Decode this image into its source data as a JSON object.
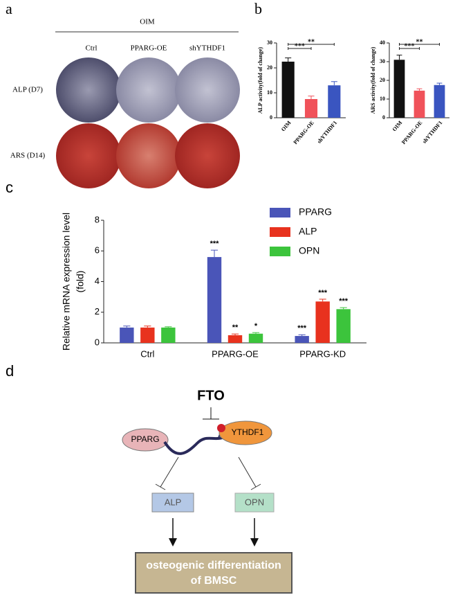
{
  "panel_a": {
    "label": "a",
    "group": "OIM",
    "columns": [
      "Ctrl",
      "PPARG-OE",
      "shYTHDF1"
    ],
    "rows": [
      "ALP (D7)",
      "ARS (D14)"
    ]
  },
  "panel_b": {
    "label": "b"
  },
  "panel_c": {
    "label": "c"
  },
  "chart_data": [
    {
      "type": "bar",
      "ylabel": "ALP activity(fold of change)",
      "categories": [
        "OIM",
        "PPARG-OE",
        "shYTHDF1"
      ],
      "values": [
        22.5,
        7.5,
        13
      ],
      "errors": [
        1.5,
        1.2,
        1.5
      ],
      "colors": [
        "#111111",
        "#f0525a",
        "#3a55c0"
      ],
      "significance": [
        null,
        "***",
        "**"
      ],
      "ylim": [
        0,
        30
      ],
      "yticks": [
        0,
        10,
        20,
        30
      ]
    },
    {
      "type": "bar",
      "ylabel": "ARS activity(fold of change)",
      "categories": [
        "OIM",
        "PPARG-OE",
        "shYTHDF1"
      ],
      "values": [
        31,
        14.5,
        17.5
      ],
      "errors": [
        2.5,
        1,
        1
      ],
      "colors": [
        "#111111",
        "#f0525a",
        "#3a55c0"
      ],
      "significance": [
        null,
        "***",
        "**"
      ],
      "ylim": [
        0,
        40
      ],
      "yticks": [
        0,
        10,
        20,
        30,
        40
      ]
    },
    {
      "type": "bar",
      "ylabel": [
        "Relative mRNA expression level",
        "(fold)"
      ],
      "categories": [
        "Ctrl",
        "PPARG-OE",
        "PPARG-KD"
      ],
      "series": [
        {
          "name": "PPARG",
          "color": "#4a55b8",
          "values": [
            1,
            5.6,
            0.45
          ],
          "errors": [
            0.1,
            0.45,
            0.08
          ],
          "significance": [
            null,
            "***",
            "***"
          ]
        },
        {
          "name": "ALP",
          "color": "#e8321e",
          "values": [
            1,
            0.5,
            2.7
          ],
          "errors": [
            0.1,
            0.08,
            0.15
          ],
          "significance": [
            null,
            "**",
            "***"
          ]
        },
        {
          "name": "OPN",
          "color": "#3cc43c",
          "values": [
            1,
            0.6,
            2.2
          ],
          "errors": [
            0.05,
            0.07,
            0.1
          ],
          "significance": [
            null,
            "*",
            "***"
          ]
        }
      ],
      "ylim": [
        0,
        8
      ],
      "yticks": [
        0,
        2,
        4,
        6,
        8
      ]
    }
  ],
  "panel_d": {
    "label": "d",
    "nodes": {
      "fto": "FTO",
      "pparg": "PPARG",
      "ythdf1": "YTHDF1",
      "alp": "ALP",
      "opn": "OPN",
      "outcome": [
        "osteogenic differentiation",
        "of BMSC"
      ]
    }
  }
}
